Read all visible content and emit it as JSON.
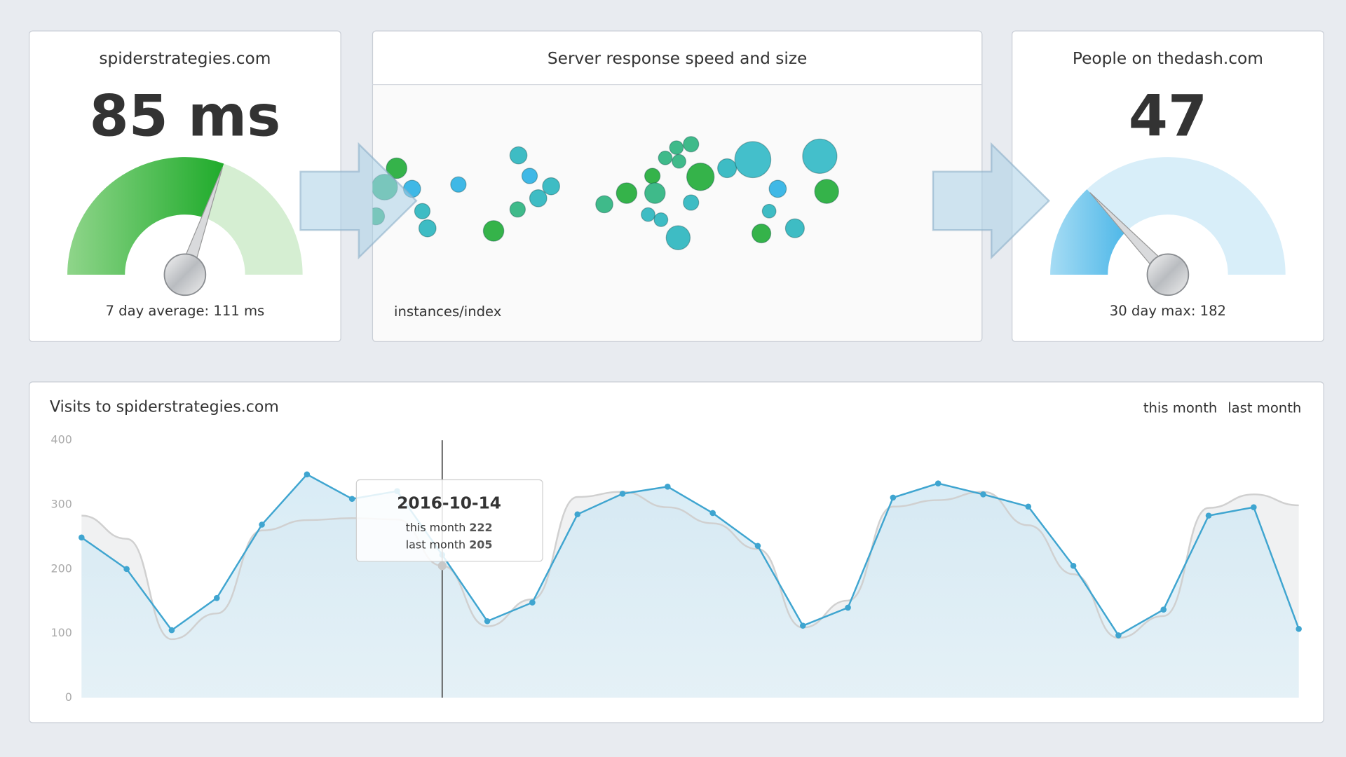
{
  "chart_data": [
    {
      "type": "gauge",
      "title": "spiderstrategies.com",
      "value": 85,
      "value_label": "85 ms",
      "ylim": [
        0,
        140
      ],
      "subtitle": "7 day average: 111 ms",
      "color": "#1fab2b",
      "color_light": "#8fd58a",
      "track_color": "#d5eed2"
    },
    {
      "type": "bubble",
      "title": "Server response speed and size",
      "xlabel": "instances/index",
      "xlim": [
        0,
        710
      ],
      "ylim": [
        0,
        170
      ],
      "x": [
        28,
        14,
        46,
        58,
        4,
        64,
        100,
        141,
        170,
        183,
        208,
        193,
        169,
        270,
        296,
        326,
        329,
        341,
        354,
        371,
        357,
        382,
        371,
        321,
        336,
        356,
        413,
        443,
        521,
        472,
        529,
        462,
        453,
        492
      ],
      "values": [
        104,
        82,
        80,
        54,
        48,
        34,
        85,
        31,
        119,
        95,
        83,
        69,
        56,
        62,
        75,
        95,
        75,
        116,
        128,
        132,
        112,
        94,
        64,
        50,
        44,
        23,
        104,
        114,
        118,
        80,
        77,
        54,
        28,
        34
      ],
      "sizes": [
        12,
        15,
        10,
        9,
        10,
        10,
        9,
        12,
        10,
        9,
        10,
        10,
        9,
        10,
        12,
        9,
        12,
        8,
        8,
        9,
        8,
        16,
        9,
        8,
        8,
        14,
        11,
        21,
        20,
        10,
        14,
        8,
        11,
        11
      ],
      "colors": [
        "#35b34a",
        "#3fba8a",
        "#3fb8e6",
        "#3ebcc4",
        "#3fba8a",
        "#3ebcc4",
        "#3fb8e6",
        "#35b34a",
        "#3ebcc4",
        "#3fb8e6",
        "#3ebcc4",
        "#3ebcc4",
        "#3fba8a",
        "#3fba8a",
        "#35b34a",
        "#35b34a",
        "#3fba8a",
        "#3fba8a",
        "#3fba8a",
        "#3fba8a",
        "#3fba8a",
        "#35b34a",
        "#3ebcc4",
        "#3ebcc4",
        "#3ebcc4",
        "#3ebcc4",
        "#3ebcc4",
        "#44bfcb",
        "#44bfcb",
        "#3fb8e6",
        "#35b34a",
        "#3ebcc4",
        "#35b34a",
        "#3ebcc4"
      ]
    },
    {
      "type": "gauge",
      "title": "People on thedash.com",
      "value": 47,
      "value_label": "47",
      "ylim": [
        0,
        182
      ],
      "subtitle": "30 day max: 182",
      "color": "#4db7e8",
      "color_light": "#a6dcf4",
      "track_color": "#d8eef9"
    },
    {
      "type": "line",
      "title": "Visits to spiderstrategies.com",
      "ylim": [
        0,
        400
      ],
      "yticks": [
        0,
        100,
        200,
        300,
        400
      ],
      "categories": [
        null,
        null,
        null,
        null,
        null,
        null,
        null,
        null,
        "2016-10-14",
        null,
        null,
        null,
        null,
        null,
        null,
        null,
        null,
        null,
        null,
        null,
        null,
        null,
        null,
        null,
        null,
        null,
        null,
        null
      ],
      "series": [
        {
          "name": "this month",
          "color": "#3fa5d0",
          "values": [
            249,
            200,
            105,
            155,
            269,
            347,
            309,
            321,
            222,
            119,
            148,
            285,
            317,
            328,
            287,
            236,
            112,
            140,
            311,
            333,
            316,
            297,
            205,
            97,
            137,
            283,
            296,
            107
          ]
        },
        {
          "name": "last month",
          "color": "#bbbbbb",
          "values": [
            283,
            247,
            91,
            131,
            260,
            276,
            279,
            277,
            205,
            111,
            153,
            312,
            320,
            296,
            271,
            231,
            109,
            151,
            297,
            307,
            320,
            268,
            192,
            93,
            127,
            295,
            316,
            299
          ]
        }
      ]
    }
  ]
}
